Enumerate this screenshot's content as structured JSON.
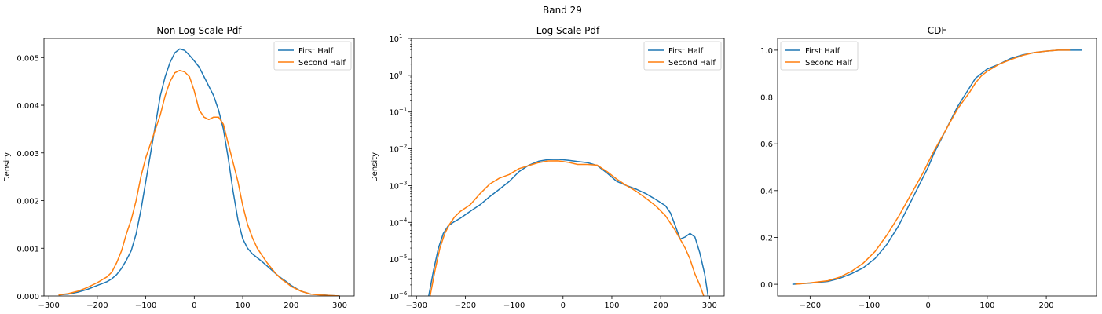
{
  "figure": {
    "suptitle": "Band 29"
  },
  "colors": {
    "series_1": "#1f77b4",
    "series_2": "#ff7f0e"
  },
  "chart_data": [
    {
      "type": "line",
      "title": "Non Log Scale Pdf",
      "xlabel": "",
      "ylabel": "Density",
      "xlim": [
        -310,
        330
      ],
      "ylim": [
        0,
        0.0054
      ],
      "xticks": [
        -300,
        -200,
        -100,
        0,
        100,
        200,
        300
      ],
      "xtick_labels": [
        "−300",
        "−200",
        "−100",
        "0",
        "100",
        "200",
        "300"
      ],
      "yticks": [
        0,
        0.001,
        0.002,
        0.003,
        0.004,
        0.005
      ],
      "ytick_labels": [
        "0.000",
        "0.001",
        "0.002",
        "0.003",
        "0.004",
        "0.005"
      ],
      "yscale": "linear",
      "legend_position": "upper right",
      "grid": false,
      "series": [
        {
          "name": "First Half",
          "x": [
            -280,
            -260,
            -240,
            -220,
            -200,
            -180,
            -170,
            -160,
            -150,
            -140,
            -130,
            -120,
            -110,
            -100,
            -90,
            -80,
            -70,
            -60,
            -50,
            -40,
            -30,
            -20,
            -10,
            0,
            10,
            20,
            30,
            40,
            50,
            60,
            70,
            80,
            90,
            100,
            110,
            120,
            130,
            140,
            150,
            160,
            170,
            180,
            190,
            200,
            220,
            240,
            260,
            280,
            300
          ],
          "y": [
            2e-05,
            4e-05,
            8e-05,
            0.00014,
            0.00022,
            0.0003,
            0.00036,
            0.00045,
            0.00058,
            0.00075,
            0.00095,
            0.0013,
            0.0018,
            0.0024,
            0.003,
            0.0036,
            0.0042,
            0.0046,
            0.0049,
            0.0051,
            0.00518,
            0.00515,
            0.00505,
            0.00493,
            0.0048,
            0.0046,
            0.0044,
            0.0042,
            0.0039,
            0.0035,
            0.0029,
            0.0022,
            0.0016,
            0.0012,
            0.001,
            0.00088,
            0.0008,
            0.00072,
            0.00063,
            0.00054,
            0.00045,
            0.00037,
            0.0003,
            0.00022,
            0.0001,
            4e-05,
            3e-05,
            1e-05,
            0.0
          ]
        },
        {
          "name": "Second Half",
          "x": [
            -280,
            -260,
            -240,
            -220,
            -200,
            -180,
            -170,
            -160,
            -150,
            -140,
            -130,
            -120,
            -110,
            -100,
            -90,
            -80,
            -70,
            -60,
            -50,
            -40,
            -30,
            -20,
            -10,
            0,
            10,
            20,
            30,
            40,
            50,
            60,
            70,
            80,
            90,
            100,
            110,
            120,
            130,
            140,
            150,
            160,
            170,
            180,
            190,
            200,
            220,
            240,
            260,
            280,
            300
          ],
          "y": [
            2e-05,
            5e-05,
            0.0001,
            0.00018,
            0.00028,
            0.0004,
            0.0005,
            0.0007,
            0.00095,
            0.0013,
            0.0016,
            0.002,
            0.0025,
            0.0029,
            0.0032,
            0.0035,
            0.0038,
            0.0042,
            0.0045,
            0.00468,
            0.00473,
            0.0047,
            0.0046,
            0.0043,
            0.0039,
            0.00375,
            0.0037,
            0.00375,
            0.00375,
            0.0036,
            0.0032,
            0.0028,
            0.0024,
            0.0019,
            0.0015,
            0.00122,
            0.001,
            0.00085,
            0.0007,
            0.00057,
            0.00045,
            0.00035,
            0.00028,
            0.0002,
            0.0001,
            4e-05,
            2e-05,
            1e-05,
            0.0
          ]
        }
      ]
    },
    {
      "type": "line",
      "title": "Log Scale Pdf",
      "xlabel": "",
      "ylabel": "Density",
      "xlim": [
        -310,
        330
      ],
      "ylim": [
        1e-06,
        10
      ],
      "yscale": "log",
      "xticks": [
        -300,
        -200,
        -100,
        0,
        100,
        200,
        300
      ],
      "xtick_labels": [
        "−300",
        "−200",
        "−100",
        "0",
        "100",
        "200",
        "300"
      ],
      "ytick_exponents": [
        -6,
        -5,
        -4,
        -3,
        -2,
        -1,
        0,
        1
      ],
      "ytick_base": "10",
      "legend_position": "upper right",
      "grid": false,
      "series": [
        {
          "name": "First Half",
          "x": [
            -275,
            -265,
            -255,
            -245,
            -235,
            -225,
            -210,
            -190,
            -170,
            -150,
            -130,
            -110,
            -90,
            -70,
            -50,
            -30,
            -10,
            10,
            30,
            50,
            70,
            90,
            110,
            130,
            150,
            170,
            190,
            210,
            220,
            230,
            240,
            250,
            260,
            270,
            280,
            290,
            297
          ],
          "y": [
            1e-06,
            5e-06,
            2e-05,
            5e-05,
            8e-05,
            0.0001,
            0.00013,
            0.0002,
            0.0003,
            0.0005,
            0.0008,
            0.0013,
            0.0024,
            0.0036,
            0.0046,
            0.0051,
            0.00518,
            0.0049,
            0.0045,
            0.0042,
            0.0035,
            0.0022,
            0.0013,
            0.001,
            0.0008,
            0.0006,
            0.00042,
            0.00028,
            0.00018,
            8e-05,
            3.5e-05,
            4e-05,
            5e-05,
            4e-05,
            1.5e-05,
            4e-06,
            1e-06
          ]
        },
        {
          "name": "Second Half",
          "x": [
            -272,
            -262,
            -252,
            -242,
            -232,
            -222,
            -210,
            -190,
            -170,
            -150,
            -130,
            -110,
            -90,
            -70,
            -50,
            -30,
            -10,
            10,
            30,
            50,
            70,
            90,
            110,
            130,
            150,
            170,
            190,
            210,
            230,
            250,
            260,
            270,
            280,
            288
          ],
          "y": [
            1e-06,
            5e-06,
            2e-05,
            5e-05,
            9e-05,
            0.00014,
            0.0002,
            0.0003,
            0.0006,
            0.0011,
            0.0016,
            0.002,
            0.0029,
            0.0035,
            0.0042,
            0.00468,
            0.0047,
            0.0043,
            0.00375,
            0.00375,
            0.0036,
            0.0024,
            0.0015,
            0.001,
            0.0007,
            0.00045,
            0.00028,
            0.00015,
            6e-05,
            2e-05,
            1e-05,
            4e-06,
            2e-06,
            1e-06
          ]
        }
      ]
    },
    {
      "type": "line",
      "title": "CDF",
      "xlabel": "",
      "ylabel": "",
      "xlim": [
        -255,
        285
      ],
      "ylim": [
        -0.05,
        1.05
      ],
      "yscale": "linear",
      "xticks": [
        -200,
        -100,
        0,
        100,
        200
      ],
      "xtick_labels": [
        "−200",
        "−100",
        "0",
        "100",
        "200"
      ],
      "yticks": [
        0,
        0.2,
        0.4,
        0.6,
        0.8,
        1.0
      ],
      "ytick_labels": [
        "0.0",
        "0.2",
        "0.4",
        "0.6",
        "0.8",
        "1.0"
      ],
      "legend_position": "upper left",
      "grid": false,
      "series": [
        {
          "name": "First Half",
          "x": [
            -230,
            -200,
            -170,
            -150,
            -130,
            -110,
            -90,
            -70,
            -50,
            -30,
            -10,
            0,
            10,
            30,
            50,
            70,
            80,
            90,
            100,
            120,
            140,
            160,
            180,
            200,
            220,
            240,
            260
          ],
          "y": [
            0.0,
            0.005,
            0.012,
            0.025,
            0.045,
            0.07,
            0.11,
            0.17,
            0.25,
            0.35,
            0.45,
            0.5,
            0.56,
            0.66,
            0.76,
            0.84,
            0.88,
            0.9,
            0.92,
            0.94,
            0.965,
            0.98,
            0.99,
            0.996,
            1.0,
            1.0,
            1.0
          ]
        },
        {
          "name": "Second Half",
          "x": [
            -225,
            -200,
            -170,
            -150,
            -130,
            -110,
            -90,
            -70,
            -50,
            -30,
            -10,
            0,
            10,
            30,
            50,
            70,
            80,
            90,
            100,
            120,
            140,
            160,
            180,
            200,
            220,
            240
          ],
          "y": [
            0.0,
            0.006,
            0.015,
            0.03,
            0.055,
            0.09,
            0.14,
            0.21,
            0.29,
            0.38,
            0.47,
            0.52,
            0.57,
            0.66,
            0.75,
            0.82,
            0.86,
            0.89,
            0.91,
            0.94,
            0.96,
            0.978,
            0.99,
            0.996,
            1.0,
            1.0
          ]
        }
      ]
    }
  ]
}
